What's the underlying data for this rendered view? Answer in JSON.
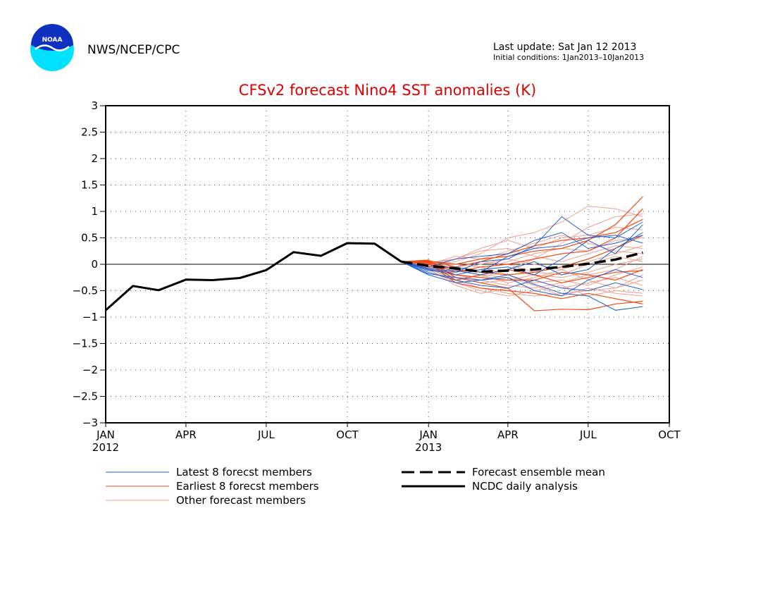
{
  "header": {
    "agency": "NWS/NCEP/CPC",
    "logo_text": "NOAA",
    "last_update": "Last update: Sat Jan 12 2013",
    "initial_conditions": "Initial conditions: 1Jan2013–10Jan2013"
  },
  "colors": {
    "latest": "#1f5fd0",
    "earliest": "#f04a14",
    "other": "#f0a090",
    "mean": "#000000",
    "analysis": "#000000",
    "title": "#e00000",
    "logo_outer": "#00e0ff",
    "logo_inner": "#1030c0"
  },
  "chart_data": {
    "type": "line",
    "title": "CFSv2 forecast Nino4 SST anomalies (K)",
    "ylim": [
      -3,
      3
    ],
    "yticks": [
      -3,
      -2.5,
      -2,
      -1.5,
      -1,
      -0.5,
      0,
      0.5,
      1,
      1.5,
      2,
      2.5,
      3
    ],
    "ytick_labels": [
      "−3",
      "−2.5",
      "−2",
      "−1.5",
      "−1",
      "−0.5",
      "0",
      "0.5",
      "1",
      "1.5",
      "2",
      "2.5",
      "3"
    ],
    "xlim": [
      "2012-01-01",
      "2013-10-01"
    ],
    "xticks": [
      {
        "date": "2012-01-01",
        "label": "JAN",
        "year": "2012"
      },
      {
        "date": "2012-04-01",
        "label": "APR",
        "year": ""
      },
      {
        "date": "2012-07-01",
        "label": "JUL",
        "year": ""
      },
      {
        "date": "2012-10-01",
        "label": "OCT",
        "year": ""
      },
      {
        "date": "2013-01-01",
        "label": "JAN",
        "year": "2013"
      },
      {
        "date": "2013-04-01",
        "label": "APR",
        "year": ""
      },
      {
        "date": "2013-07-01",
        "label": "JUL",
        "year": ""
      },
      {
        "date": "2013-10-01",
        "label": "OCT",
        "year": ""
      }
    ],
    "grid": true,
    "zero_line": true,
    "analysis": {
      "name": "NCDC daily analysis",
      "x": [
        "2012-01-01",
        "2012-02-01",
        "2012-03-01",
        "2012-04-01",
        "2012-05-01",
        "2012-06-01",
        "2012-07-01",
        "2012-08-01",
        "2012-09-01",
        "2012-10-01",
        "2012-11-01",
        "2012-12-01"
      ],
      "y": [
        -0.87,
        -0.41,
        -0.49,
        -0.29,
        -0.3,
        -0.26,
        -0.11,
        0.23,
        0.16,
        0.4,
        0.39,
        0.05
      ]
    },
    "forecast_months": [
      "2012-12-01",
      "2013-01-01",
      "2013-02-01",
      "2013-03-01",
      "2013-04-01",
      "2013-05-01",
      "2013-06-01",
      "2013-07-01",
      "2013-08-01",
      "2013-09-01"
    ],
    "ensemble_mean": {
      "name": "Forecast ensemble mean",
      "y": [
        0.05,
        -0.03,
        -0.08,
        -0.14,
        -0.12,
        -0.1,
        -0.05,
        0.01,
        0.09,
        0.22
      ]
    },
    "latest_members": {
      "name": "Latest 8 forecst members",
      "values": [
        [
          0.05,
          -0.18,
          -0.25,
          -0.3,
          -0.2,
          -0.38,
          -0.55,
          -0.6,
          -0.87,
          -0.8
        ],
        [
          0.05,
          -0.12,
          -0.15,
          0.05,
          0.1,
          0.35,
          0.9,
          0.55,
          0.5,
          0.8
        ],
        [
          0.05,
          -0.05,
          0.1,
          0.15,
          0.2,
          0.45,
          0.6,
          0.3,
          0.4,
          0.55
        ],
        [
          0.05,
          -0.1,
          -0.2,
          -0.1,
          -0.05,
          -0.2,
          0.1,
          0.45,
          0.2,
          0.75
        ],
        [
          0.05,
          -0.15,
          -0.3,
          -0.4,
          -0.45,
          -0.3,
          -0.45,
          -0.5,
          -0.35,
          -0.48
        ],
        [
          0.05,
          -0.08,
          -0.05,
          -0.15,
          0.15,
          0.3,
          0.35,
          0.5,
          0.55,
          0.4
        ],
        [
          0.05,
          -0.2,
          -0.35,
          -0.3,
          -0.25,
          -0.5,
          -0.6,
          -0.3,
          -0.1,
          -0.25
        ],
        [
          0.05,
          -0.1,
          -0.12,
          -0.2,
          -0.1,
          0.05,
          -0.2,
          -0.1,
          0.3,
          0.6
        ]
      ]
    },
    "earliest_members": {
      "name": "Earliest 8 forecst members",
      "values": [
        [
          0.05,
          0.08,
          -0.25,
          -0.35,
          -0.45,
          -0.88,
          -0.85,
          -0.86,
          -0.75,
          -0.7
        ],
        [
          0.05,
          0.06,
          0.0,
          0.1,
          0.15,
          0.25,
          0.3,
          0.45,
          0.75,
          1.28
        ],
        [
          0.05,
          0.04,
          -0.15,
          -0.05,
          0.0,
          0.1,
          0.2,
          0.25,
          0.5,
          1.05
        ],
        [
          0.05,
          0.02,
          -0.35,
          -0.45,
          -0.5,
          -0.55,
          -0.65,
          -0.55,
          -0.65,
          -0.75
        ],
        [
          0.05,
          0.07,
          -0.05,
          0.05,
          0.2,
          0.35,
          0.45,
          0.5,
          0.6,
          0.85
        ],
        [
          0.05,
          0.0,
          -0.2,
          -0.25,
          -0.3,
          -0.3,
          -0.15,
          -0.2,
          -0.3,
          -0.1
        ],
        [
          0.05,
          0.05,
          -0.1,
          -0.15,
          -0.2,
          -0.15,
          -0.05,
          0.1,
          0.3,
          0.55
        ],
        [
          0.05,
          0.03,
          -0.3,
          -0.2,
          -0.1,
          -0.2,
          -0.35,
          -0.25,
          -0.15,
          -0.12
        ]
      ]
    },
    "other_members": {
      "name": "Other forecast members",
      "values": [
        [
          0.05,
          -0.02,
          0.05,
          0.2,
          0.5,
          0.6,
          0.8,
          1.1,
          1.05,
          0.9
        ],
        [
          0.05,
          -0.05,
          -0.2,
          -0.25,
          -0.1,
          0.1,
          0.4,
          0.7,
          0.9,
          0.95
        ],
        [
          0.05,
          0.0,
          0.1,
          0.3,
          0.45,
          0.3,
          0.5,
          0.55,
          0.7,
          0.65
        ],
        [
          0.05,
          -0.08,
          -0.3,
          -0.45,
          -0.55,
          -0.6,
          -0.55,
          -0.5,
          -0.45,
          -0.3
        ],
        [
          0.05,
          -0.1,
          -0.35,
          -0.5,
          -0.6,
          -0.5,
          -0.4,
          -0.6,
          -0.5,
          -0.55
        ],
        [
          0.05,
          0.02,
          -0.1,
          0.0,
          0.1,
          0.0,
          -0.1,
          0.05,
          0.2,
          0.35
        ],
        [
          0.05,
          -0.03,
          -0.15,
          -0.1,
          0.05,
          0.2,
          0.3,
          0.25,
          0.45,
          0.5
        ],
        [
          0.05,
          -0.06,
          -0.25,
          -0.35,
          -0.3,
          -0.2,
          -0.25,
          -0.15,
          0.0,
          0.1
        ],
        [
          0.05,
          0.01,
          0.0,
          -0.05,
          -0.2,
          -0.35,
          -0.3,
          -0.4,
          -0.2,
          -0.05
        ],
        [
          0.05,
          -0.04,
          -0.2,
          -0.3,
          -0.4,
          -0.45,
          -0.35,
          -0.2,
          -0.1,
          0.15
        ],
        [
          0.05,
          0.03,
          0.1,
          0.25,
          0.3,
          0.15,
          0.05,
          0.2,
          0.35,
          0.3
        ],
        [
          0.05,
          -0.07,
          -0.3,
          -0.2,
          -0.35,
          -0.25,
          -0.1,
          -0.3,
          -0.45,
          -0.2
        ],
        [
          0.05,
          -0.01,
          -0.05,
          0.05,
          0.0,
          -0.15,
          -0.2,
          0.0,
          0.15,
          0.05
        ],
        [
          0.05,
          -0.09,
          -0.4,
          -0.55,
          -0.45,
          -0.3,
          -0.45,
          -0.35,
          -0.25,
          -0.4
        ],
        [
          0.05,
          0.0,
          0.15,
          0.1,
          0.25,
          0.4,
          0.55,
          0.4,
          0.25,
          0.2
        ],
        [
          0.05,
          -0.05,
          -0.1,
          -0.2,
          -0.25,
          -0.4,
          -0.6,
          -0.45,
          -0.55,
          -0.6
        ]
      ]
    },
    "legend": {
      "latest": "Latest 8 forecst members",
      "earliest": "Earliest 8 forecst members",
      "other": "Other forecast members",
      "mean": "Forecast ensemble mean",
      "analysis": "NCDC daily analysis"
    }
  }
}
